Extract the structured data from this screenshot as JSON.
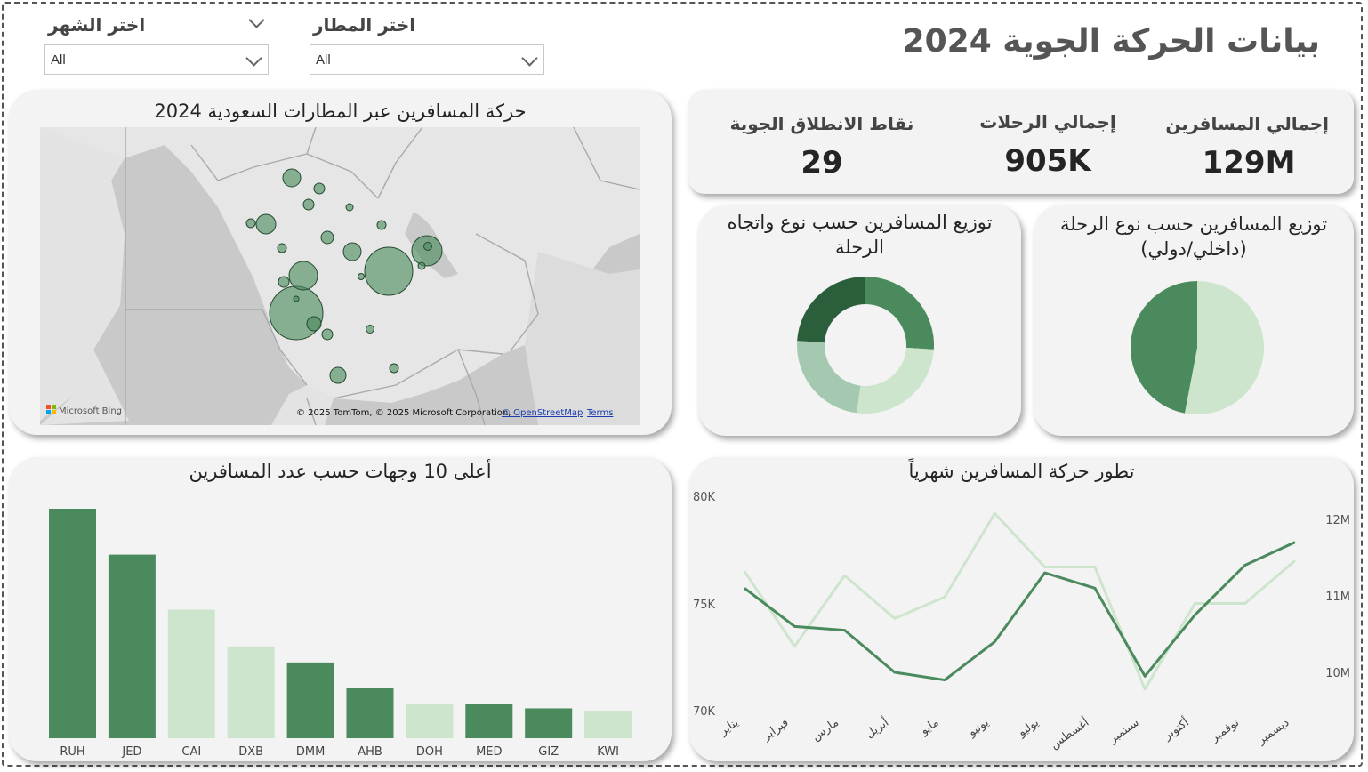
{
  "header": {
    "title": "بيانات الحركة الجوية 2024"
  },
  "filters": {
    "month": {
      "label": "اختر الشهر",
      "value": "All"
    },
    "airport": {
      "label": "اختر المطار",
      "value": "All"
    }
  },
  "kpis": [
    {
      "label": "إجمالي المسافرين",
      "value": "129M"
    },
    {
      "label": "إجمالي الرحلات",
      "value": "905K"
    },
    {
      "label": "نقاط الانطلاق الجوية",
      "value": "29"
    }
  ],
  "map": {
    "title": "حركة المسافرين عبر المطارات السعودية 2024",
    "logo": "Microsoft Bing",
    "attribution": "© 2025 TomTom, © 2025 Microsoft Corporation,",
    "osm_link": "© OpenStreetMap",
    "terms_link": "Terms",
    "bubble_color": "#4a8a5c"
  },
  "pie_domestic": {
    "title": "توزيع المسافرين حسب نوع الرحلة (داخلي/دولي)"
  },
  "donut_direction": {
    "title": "توزيع المسافرين حسب نوع واتجاه الرحلة"
  },
  "bar_top10": {
    "title": "أعلى 10 وجهات حسب عدد المسافرين"
  },
  "line_monthly": {
    "title": "تطور حركة المسافرين شهرياً"
  },
  "colors": {
    "dark_green": "#4a8a5c",
    "light_green": "#cde5cc",
    "mid_green": "#a5c8b0",
    "darkest_green": "#2b5e3a"
  },
  "chart_data": [
    {
      "id": "pie",
      "type": "pie",
      "title": "توزيع المسافرين حسب نوع الرحلة (داخلي/دولي)",
      "slices": [
        {
          "value": 53,
          "color": "#cde5cc"
        },
        {
          "value": 47,
          "color": "#4a8a5c"
        }
      ]
    },
    {
      "id": "donut",
      "type": "pie",
      "title": "توزيع المسافرين حسب نوع واتجاه الرحلة",
      "slices": [
        {
          "value": 26,
          "color": "#4a8a5c"
        },
        {
          "value": 26,
          "color": "#cde5cc"
        },
        {
          "value": 24,
          "color": "#a5c8b0"
        },
        {
          "value": 24,
          "color": "#2b5e3a"
        }
      ]
    },
    {
      "id": "bars",
      "type": "bar",
      "title": "أعلى 10 وجهات حسب عدد المسافرين",
      "categories": [
        "RUH",
        "JED",
        "CAI",
        "DXB",
        "DMM",
        "AHB",
        "DOH",
        "MED",
        "GIZ",
        "KWI"
      ],
      "values": [
        100,
        80,
        56,
        40,
        33,
        22,
        15,
        15,
        13,
        12
      ],
      "colors": [
        "#4a8a5c",
        "#4a8a5c",
        "#cde5cc",
        "#cde5cc",
        "#4a8a5c",
        "#4a8a5c",
        "#cde5cc",
        "#4a8a5c",
        "#4a8a5c",
        "#cde5cc"
      ],
      "ylim": [
        0,
        100
      ]
    },
    {
      "id": "line",
      "type": "line",
      "title": "تطور حركة المسافرين شهرياً",
      "categories": [
        "يناير",
        "فبراير",
        "مارس",
        "أبريل",
        "مايو",
        "يونيو",
        "يوليو",
        "أغسطس",
        "سبتمبر",
        "أكتوبر",
        "نوفمبر",
        "ديسمبر"
      ],
      "left_axis": {
        "ticks": [
          "80K",
          "75K",
          "70K"
        ],
        "ylim": [
          70000,
          80000
        ]
      },
      "right_axis": {
        "ticks": [
          "12M",
          "11M",
          "10M"
        ],
        "ylim": [
          9500000,
          12300000
        ]
      },
      "series": [
        {
          "axis": "right",
          "color": "#4a8a5c",
          "values": [
            11100000,
            10600000,
            10550000,
            10000000,
            9900000,
            10400000,
            11300000,
            11100000,
            9950000,
            10750000,
            11400000,
            11700000
          ]
        },
        {
          "axis": "left",
          "color": "#cde5cc",
          "values": [
            76500,
            73000,
            76300,
            74300,
            75300,
            79200,
            76700,
            76700,
            71000,
            75000,
            75000,
            77000
          ]
        }
      ]
    }
  ]
}
